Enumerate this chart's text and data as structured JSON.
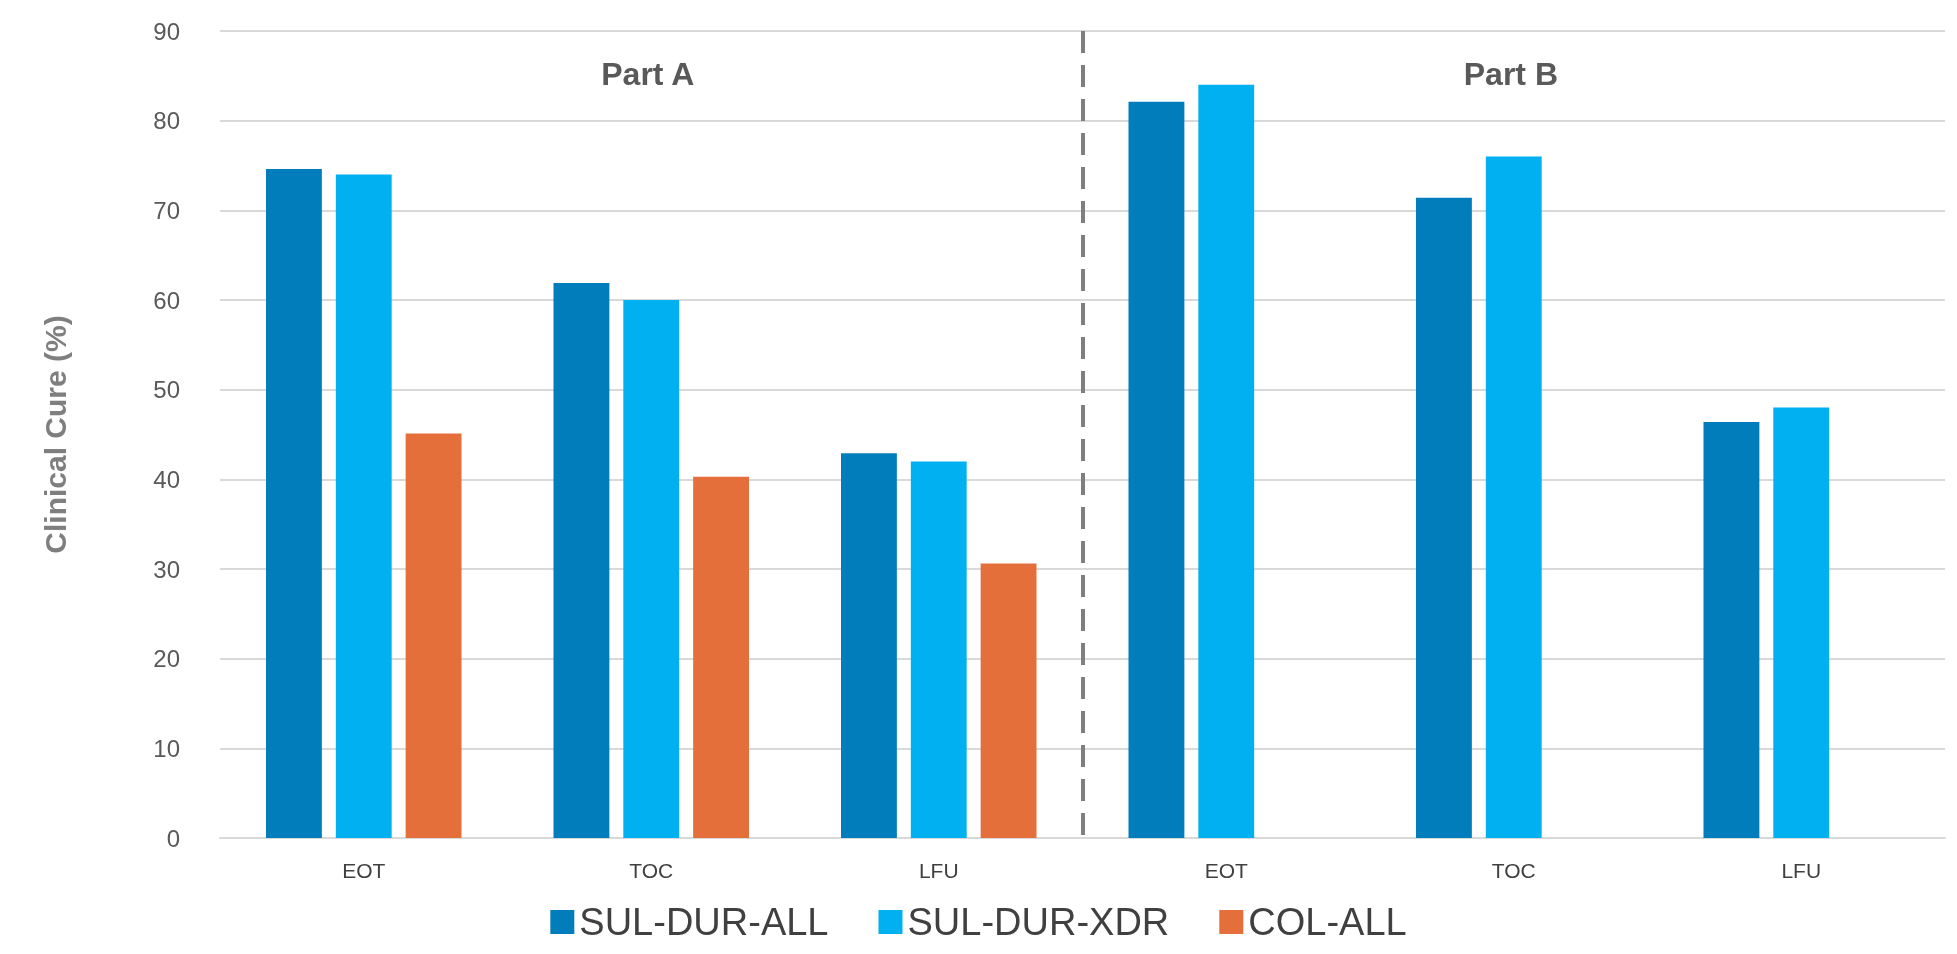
{
  "chart_data": {
    "type": "bar",
    "ylabel": "Clinical Cure (%)",
    "categories": [
      "EOT",
      "TOC",
      "LFU",
      "EOT",
      "TOC",
      "LFU"
    ],
    "series": [
      {
        "name": "SUL-DUR-ALL",
        "color": "#007dba",
        "values": [
          74.6,
          61.9,
          42.9,
          82.1,
          71.4,
          46.4
        ]
      },
      {
        "name": "SUL-DUR-XDR",
        "color": "#00b0f0",
        "values": [
          74,
          60,
          42,
          84,
          76,
          48
        ]
      },
      {
        "name": "COL-ALL",
        "color": "#e46f3a",
        "values": [
          45.1,
          40.3,
          30.6,
          null,
          null,
          null
        ]
      }
    ],
    "ylim": [
      0,
      90
    ],
    "yticks": [
      0,
      10,
      20,
      30,
      40,
      50,
      60,
      70,
      80,
      90
    ],
    "grid": "y",
    "legend": "bottom",
    "annotations": [
      "Part A",
      "Part B"
    ]
  }
}
